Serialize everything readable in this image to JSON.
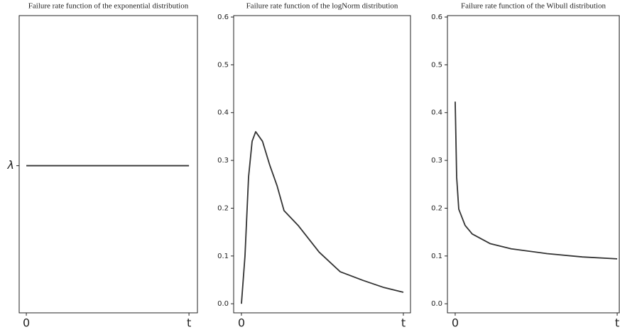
{
  "chart_data": [
    {
      "type": "line",
      "title": "Failure rate function of the exponential distribution",
      "x": [
        0,
        1
      ],
      "values": [
        1,
        1
      ],
      "color": "#333333",
      "xlim": [
        -0.044,
        1.052
      ],
      "ylim": [
        0,
        2.02
      ],
      "xticks": [
        0,
        {
          "value": 1,
          "label": "t"
        }
      ],
      "yticks": [
        {
          "value": 1,
          "label": "λ"
        }
      ]
    },
    {
      "type": "line",
      "title": "Failure rate function of the logNorm distribution",
      "x": [
        0,
        0.022,
        0.044,
        0.066,
        0.088,
        0.13,
        0.175,
        0.22,
        0.263,
        0.35,
        0.48,
        0.61,
        0.75,
        0.88,
        1
      ],
      "values": [
        0,
        0.1,
        0.265,
        0.34,
        0.36,
        0.34,
        0.29,
        0.247,
        0.195,
        0.164,
        0.108,
        0.067,
        0.049,
        0.034,
        0.024
      ],
      "color": "#333333",
      "xlim": [
        -0.048,
        1.044
      ],
      "ylim": [
        -0.019,
        0.603
      ],
      "xticks": [
        0,
        {
          "value": 1,
          "label": "t"
        }
      ],
      "yticks": [
        {
          "value": 0,
          "label": "0.0"
        },
        0.1,
        0.2,
        0.3,
        0.4,
        0.5,
        0.6
      ]
    },
    {
      "type": "line",
      "title": "Failure rate function of the Wibull distribution",
      "x": [
        0,
        0.009,
        0.022,
        0.061,
        0.105,
        0.215,
        0.346,
        0.566,
        0.785,
        1
      ],
      "values": [
        0.423,
        0.265,
        0.198,
        0.164,
        0.146,
        0.126,
        0.115,
        0.105,
        0.098,
        0.094
      ],
      "color": "#333333",
      "xlim": [
        -0.048,
        1.013
      ],
      "ylim": [
        -0.019,
        0.603
      ],
      "xticks": [
        0,
        {
          "value": 1,
          "label": "t"
        }
      ],
      "yticks": [
        {
          "value": 0,
          "label": "0.0"
        },
        0.1,
        0.2,
        0.3,
        0.4,
        0.5,
        0.6
      ]
    }
  ]
}
